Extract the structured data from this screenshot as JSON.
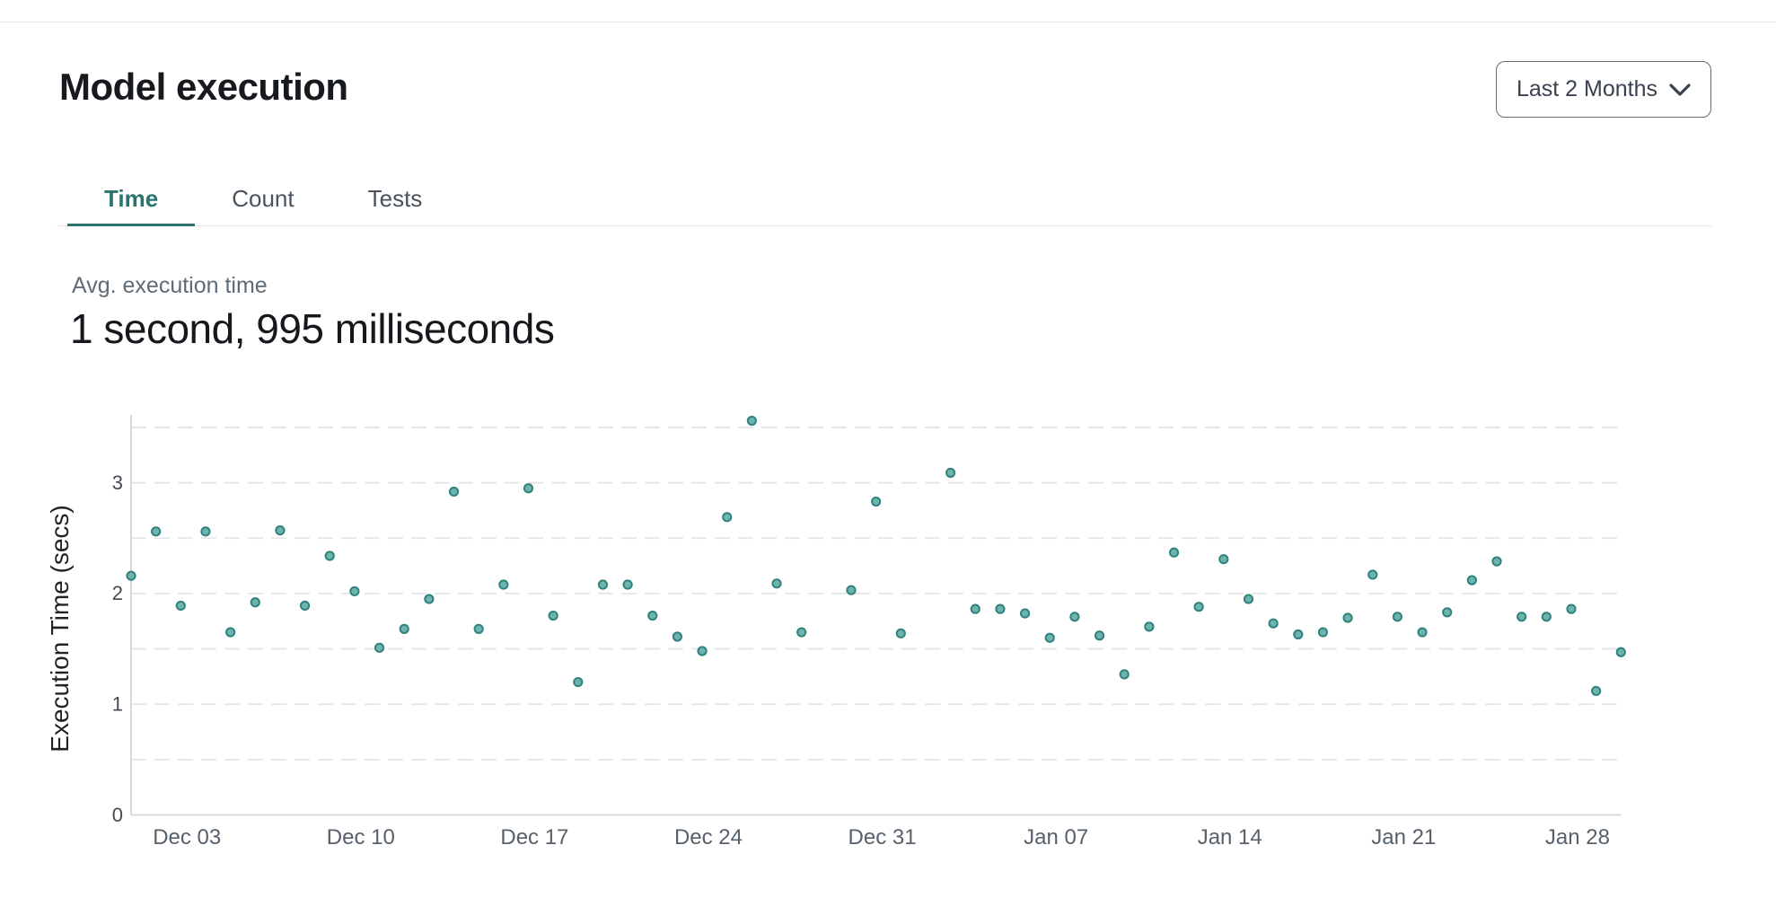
{
  "header": {
    "title": "Model execution"
  },
  "time_range": {
    "label": "Last 2 Months",
    "icon": "chevron-down-icon"
  },
  "tabs": [
    {
      "label": "Time",
      "active": true
    },
    {
      "label": "Count",
      "active": false
    },
    {
      "label": "Tests",
      "active": false
    }
  ],
  "stats": {
    "label": "Avg. execution time",
    "value": "1 second, 995 milliseconds"
  },
  "colors": {
    "accent_teal": "#2b7370",
    "point_fill": "#6db4af",
    "point_stroke": "#30827d",
    "gridline": "#e4e5e9",
    "axis_line": "#d6d8dc",
    "y_tick_text": "#414b56",
    "x_tick_text": "#57616c",
    "axis_title_text": "#1f2327"
  },
  "chart_data": {
    "type": "scatter",
    "title": "",
    "xlabel": "",
    "ylabel": "Execution Time (secs)",
    "ylim": [
      0,
      3.7
    ],
    "yticks": [
      0,
      1,
      2,
      3
    ],
    "grid": "dashed horizontal every 0.5",
    "legend": "none",
    "x_tick_labels": [
      "Dec 03",
      "Dec 10",
      "Dec 17",
      "Dec 24",
      "Dec 31",
      "Jan 07",
      "Jan 14",
      "Jan 21",
      "Jan 28"
    ],
    "points": [
      {
        "date": "Dec 01",
        "value": 2.16
      },
      {
        "date": "Dec 02",
        "value": 2.56
      },
      {
        "date": "Dec 03",
        "value": 1.89
      },
      {
        "date": "Dec 04",
        "value": 2.56
      },
      {
        "date": "Dec 05",
        "value": 1.65
      },
      {
        "date": "Dec 06",
        "value": 1.92
      },
      {
        "date": "Dec 07",
        "value": 2.57
      },
      {
        "date": "Dec 08",
        "value": 1.89
      },
      {
        "date": "Dec 09",
        "value": 2.34
      },
      {
        "date": "Dec 10",
        "value": 2.02
      },
      {
        "date": "Dec 11",
        "value": 1.51
      },
      {
        "date": "Dec 12",
        "value": 1.68
      },
      {
        "date": "Dec 13",
        "value": 1.95
      },
      {
        "date": "Dec 14",
        "value": 2.92
      },
      {
        "date": "Dec 15",
        "value": 1.68
      },
      {
        "date": "Dec 16",
        "value": 2.08
      },
      {
        "date": "Dec 17",
        "value": 2.95
      },
      {
        "date": "Dec 18",
        "value": 1.8
      },
      {
        "date": "Dec 19",
        "value": 1.2
      },
      {
        "date": "Dec 20",
        "value": 2.08
      },
      {
        "date": "Dec 21",
        "value": 2.08
      },
      {
        "date": "Dec 22",
        "value": 1.8
      },
      {
        "date": "Dec 23",
        "value": 1.61
      },
      {
        "date": "Dec 24",
        "value": 1.48
      },
      {
        "date": "Dec 25",
        "value": 2.69
      },
      {
        "date": "Dec 26",
        "value": 3.56
      },
      {
        "date": "Dec 27",
        "value": 2.09
      },
      {
        "date": "Dec 28",
        "value": 1.65
      },
      {
        "date": "Dec 30",
        "value": 2.03
      },
      {
        "date": "Dec 31",
        "value": 2.83
      },
      {
        "date": "Jan 01",
        "value": 1.64
      },
      {
        "date": "Jan 03",
        "value": 3.09
      },
      {
        "date": "Jan 04",
        "value": 1.86
      },
      {
        "date": "Jan 05",
        "value": 1.86
      },
      {
        "date": "Jan 06",
        "value": 1.82
      },
      {
        "date": "Jan 07",
        "value": 1.6
      },
      {
        "date": "Jan 08",
        "value": 1.79
      },
      {
        "date": "Jan 09",
        "value": 1.62
      },
      {
        "date": "Jan 10",
        "value": 1.27
      },
      {
        "date": "Jan 11",
        "value": 1.7
      },
      {
        "date": "Jan 12",
        "value": 2.37
      },
      {
        "date": "Jan 13",
        "value": 1.88
      },
      {
        "date": "Jan 14",
        "value": 2.31
      },
      {
        "date": "Jan 15",
        "value": 1.95
      },
      {
        "date": "Jan 16",
        "value": 1.73
      },
      {
        "date": "Jan 17",
        "value": 1.63
      },
      {
        "date": "Jan 18",
        "value": 1.65
      },
      {
        "date": "Jan 19",
        "value": 1.78
      },
      {
        "date": "Jan 20",
        "value": 2.17
      },
      {
        "date": "Jan 21",
        "value": 1.79
      },
      {
        "date": "Jan 22",
        "value": 1.65
      },
      {
        "date": "Jan 23",
        "value": 1.83
      },
      {
        "date": "Jan 24",
        "value": 2.12
      },
      {
        "date": "Jan 25",
        "value": 2.29
      },
      {
        "date": "Jan 26",
        "value": 1.79
      },
      {
        "date": "Jan 27",
        "value": 1.79
      },
      {
        "date": "Jan 28",
        "value": 1.86
      },
      {
        "date": "Jan 29",
        "value": 1.12
      },
      {
        "date": "Jan 30",
        "value": 1.47
      }
    ]
  }
}
